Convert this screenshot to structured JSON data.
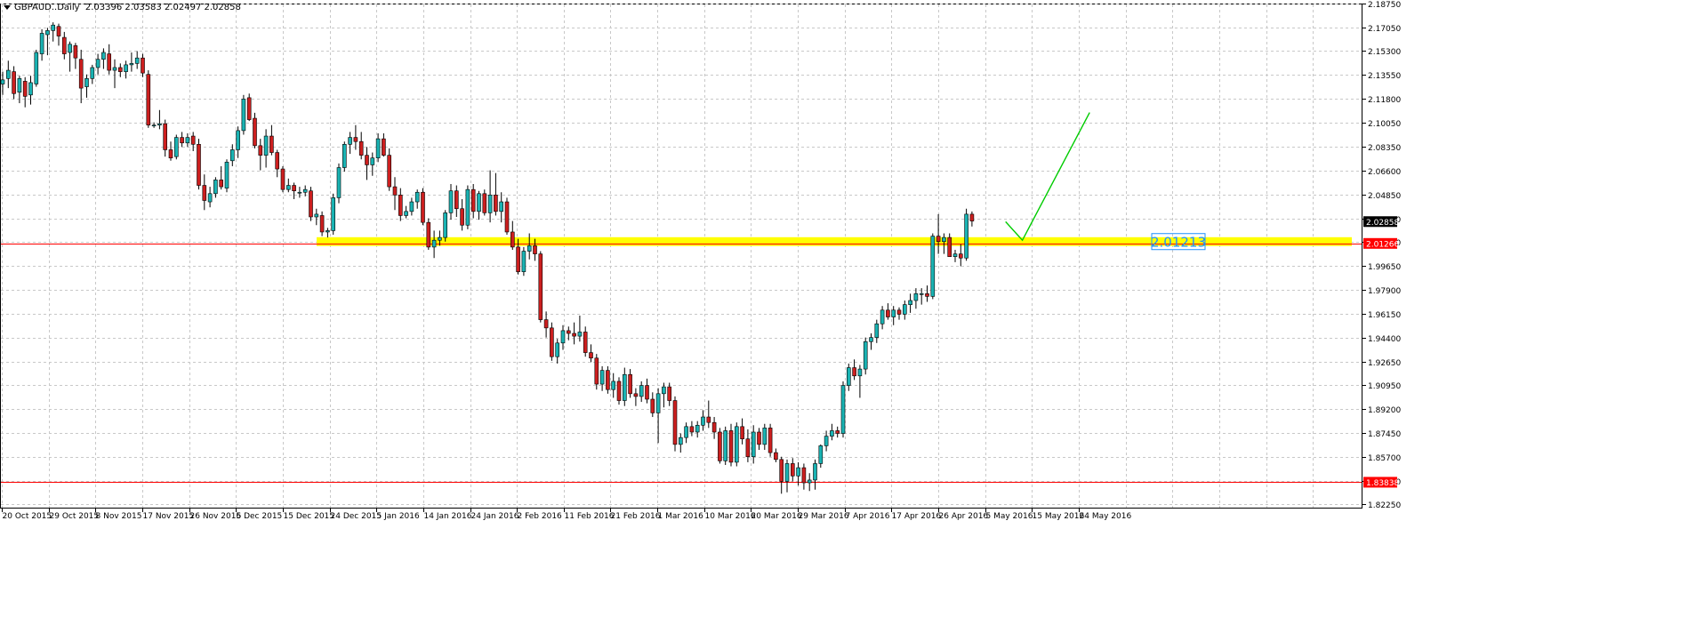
{
  "header": {
    "symbol": "GBPAUD..Daily",
    "ohlc": "2.03396 2.03583 2.02497 2.02858"
  },
  "colors": {
    "bull": "#1ab3b3",
    "bear": "#cc1f1f",
    "grid": "#c8c8c8",
    "zone": "#ffff00",
    "hline": "#ff0000",
    "projection": "#00cc00",
    "zone_label": "#1e90ff"
  },
  "chart_data": {
    "type": "candlestick",
    "symbol": "GBPAUD",
    "timeframe": "Daily",
    "ylim": [
      1.8192,
      2.1877
    ],
    "y_ticks": [
      "2.18750",
      "2.17050",
      "2.15300",
      "2.13550",
      "2.11800",
      "2.10050",
      "2.08350",
      "2.06600",
      "2.04850",
      "2.03100",
      "2.01400",
      "1.99650",
      "1.97900",
      "1.96150",
      "1.94400",
      "1.92650",
      "1.90950",
      "1.89200",
      "1.87450",
      "1.85700",
      "1.83950",
      "1.82250"
    ],
    "x_labels": [
      "20 Oct 2015",
      "29 Oct 2015",
      "8 Nov 2015",
      "17 Nov 2015",
      "26 Nov 2015",
      "6 Dec 2015",
      "15 Dec 2015",
      "24 Dec 2015",
      "5 Jan 2016",
      "14 Jan 2016",
      "24 Jan 2016",
      "2 Feb 2016",
      "11 Feb 2016",
      "21 Feb 2016",
      "1 Mar 2016",
      "10 Mar 2016",
      "20 Mar 2016",
      "29 Mar 2016",
      "7 Apr 2016",
      "17 Apr 2016",
      "26 Apr 2016",
      "5 May 2016",
      "15 May 2016",
      "24 May 2016"
    ],
    "candles": [
      [
        2.129,
        2.138,
        2.121,
        2.132
      ],
      [
        2.133,
        2.146,
        2.126,
        2.139
      ],
      [
        2.138,
        2.142,
        2.118,
        2.122
      ],
      [
        2.123,
        2.135,
        2.115,
        2.133
      ],
      [
        2.131,
        2.134,
        2.112,
        2.12
      ],
      [
        2.121,
        2.135,
        2.114,
        2.13
      ],
      [
        2.129,
        2.154,
        2.127,
        2.152
      ],
      [
        2.151,
        2.169,
        2.146,
        2.166
      ],
      [
        2.165,
        2.17,
        2.15,
        2.168
      ],
      [
        2.168,
        2.174,
        2.16,
        2.172
      ],
      [
        2.171,
        2.173,
        2.157,
        2.164
      ],
      [
        2.163,
        2.167,
        2.147,
        2.151
      ],
      [
        2.152,
        2.16,
        2.138,
        2.158
      ],
      [
        2.157,
        2.159,
        2.14,
        2.148
      ],
      [
        2.147,
        2.154,
        2.115,
        2.126
      ],
      [
        2.127,
        2.136,
        2.119,
        2.133
      ],
      [
        2.133,
        2.143,
        2.129,
        2.141
      ],
      [
        2.141,
        2.151,
        2.136,
        2.147
      ],
      [
        2.147,
        2.155,
        2.14,
        2.152
      ],
      [
        2.151,
        2.158,
        2.136,
        2.139
      ],
      [
        2.139,
        2.147,
        2.126,
        2.141
      ],
      [
        2.141,
        2.144,
        2.134,
        2.138
      ],
      [
        2.138,
        2.146,
        2.133,
        2.143
      ],
      [
        2.143,
        2.152,
        2.138,
        2.144
      ],
      [
        2.144,
        2.153,
        2.14,
        2.148
      ],
      [
        2.148,
        2.151,
        2.134,
        2.137
      ],
      [
        2.136,
        2.139,
        2.097,
        2.099
      ],
      [
        2.099,
        2.101,
        2.097,
        2.099
      ],
      [
        2.099,
        2.11,
        2.096,
        2.1
      ],
      [
        2.1,
        2.103,
        2.076,
        2.081
      ],
      [
        2.081,
        2.087,
        2.073,
        2.075
      ],
      [
        2.076,
        2.092,
        2.074,
        2.09
      ],
      [
        2.09,
        2.094,
        2.083,
        2.086
      ],
      [
        2.086,
        2.093,
        2.083,
        2.09
      ],
      [
        2.091,
        2.094,
        2.08,
        2.085
      ],
      [
        2.085,
        2.089,
        2.052,
        2.055
      ],
      [
        2.055,
        2.063,
        2.037,
        2.044
      ],
      [
        2.043,
        2.054,
        2.039,
        2.049
      ],
      [
        2.049,
        2.061,
        2.046,
        2.059
      ],
      [
        2.059,
        2.069,
        2.052,
        2.054
      ],
      [
        2.053,
        2.074,
        2.05,
        2.072
      ],
      [
        2.073,
        2.085,
        2.069,
        2.081
      ],
      [
        2.081,
        2.098,
        2.075,
        2.095
      ],
      [
        2.095,
        2.121,
        2.092,
        2.118
      ],
      [
        2.119,
        2.122,
        2.102,
        2.103
      ],
      [
        2.104,
        2.108,
        2.082,
        2.084
      ],
      [
        2.084,
        2.089,
        2.066,
        2.077
      ],
      [
        2.077,
        2.096,
        2.068,
        2.091
      ],
      [
        2.091,
        2.099,
        2.077,
        2.079
      ],
      [
        2.079,
        2.081,
        2.061,
        2.067
      ],
      [
        2.067,
        2.069,
        2.05,
        2.052
      ],
      [
        2.052,
        2.06,
        2.05,
        2.055
      ],
      [
        2.055,
        2.057,
        2.045,
        2.051
      ],
      [
        2.05,
        2.054,
        2.046,
        2.05
      ],
      [
        2.05,
        2.055,
        2.047,
        2.052
      ],
      [
        2.051,
        2.054,
        2.029,
        2.032
      ],
      [
        2.032,
        2.038,
        2.026,
        2.034
      ],
      [
        2.033,
        2.036,
        2.018,
        2.021
      ],
      [
        2.021,
        2.024,
        2.017,
        2.022
      ],
      [
        2.022,
        2.049,
        2.019,
        2.046
      ],
      [
        2.046,
        2.071,
        2.042,
        2.068
      ],
      [
        2.068,
        2.087,
        2.065,
        2.085
      ],
      [
        2.085,
        2.094,
        2.078,
        2.09
      ],
      [
        2.09,
        2.099,
        2.081,
        2.087
      ],
      [
        2.087,
        2.094,
        2.074,
        2.077
      ],
      [
        2.077,
        2.083,
        2.059,
        2.07
      ],
      [
        2.07,
        2.079,
        2.062,
        2.075
      ],
      [
        2.075,
        2.093,
        2.072,
        2.089
      ],
      [
        2.089,
        2.093,
        2.076,
        2.077
      ],
      [
        2.077,
        2.082,
        2.051,
        2.054
      ],
      [
        2.054,
        2.061,
        2.037,
        2.048
      ],
      [
        2.048,
        2.053,
        2.029,
        2.033
      ],
      [
        2.033,
        2.04,
        2.031,
        2.036
      ],
      [
        2.036,
        2.046,
        2.033,
        2.043
      ],
      [
        2.043,
        2.052,
        2.038,
        2.05
      ],
      [
        2.05,
        2.053,
        2.026,
        2.028
      ],
      [
        2.028,
        2.031,
        2.008,
        2.01
      ],
      [
        2.01,
        2.022,
        2.002,
        2.015
      ],
      [
        2.015,
        2.022,
        2.011,
        2.017
      ],
      [
        2.017,
        2.037,
        2.014,
        2.035
      ],
      [
        2.035,
        2.056,
        2.03,
        2.051
      ],
      [
        2.051,
        2.055,
        2.032,
        2.038
      ],
      [
        2.038,
        2.045,
        2.022,
        2.026
      ],
      [
        2.026,
        2.055,
        2.023,
        2.052
      ],
      [
        2.052,
        2.056,
        2.031,
        2.036
      ],
      [
        2.036,
        2.051,
        2.03,
        2.049
      ],
      [
        2.049,
        2.052,
        2.033,
        2.035
      ],
      [
        2.035,
        2.066,
        2.028,
        2.048
      ],
      [
        2.048,
        2.064,
        2.033,
        2.036
      ],
      [
        2.036,
        2.05,
        2.028,
        2.043
      ],
      [
        2.043,
        2.046,
        2.019,
        2.021
      ],
      [
        2.021,
        2.029,
        2.008,
        2.01
      ],
      [
        2.01,
        2.016,
        1.99,
        1.992
      ],
      [
        1.992,
        2.01,
        1.989,
        2.007
      ],
      [
        2.007,
        2.02,
        2.001,
        2.011
      ],
      [
        2.011,
        2.016,
        2.0,
        2.005
      ],
      [
        2.005,
        2.007,
        1.955,
        1.957
      ],
      [
        1.957,
        1.963,
        1.944,
        1.951
      ],
      [
        1.951,
        1.955,
        1.927,
        1.93
      ],
      [
        1.93,
        1.943,
        1.925,
        1.94
      ],
      [
        1.94,
        1.953,
        1.935,
        1.949
      ],
      [
        1.949,
        1.952,
        1.942,
        1.947
      ],
      [
        1.947,
        1.955,
        1.939,
        1.945
      ],
      [
        1.945,
        1.96,
        1.941,
        1.948
      ],
      [
        1.948,
        1.952,
        1.93,
        1.933
      ],
      [
        1.933,
        1.939,
        1.926,
        1.929
      ],
      [
        1.929,
        1.932,
        1.906,
        1.91
      ],
      [
        1.91,
        1.923,
        1.905,
        1.92
      ],
      [
        1.92,
        1.923,
        1.903,
        1.906
      ],
      [
        1.906,
        1.918,
        1.9,
        1.912
      ],
      [
        1.912,
        1.915,
        1.895,
        1.898
      ],
      [
        1.898,
        1.922,
        1.894,
        1.917
      ],
      [
        1.917,
        1.921,
        1.9,
        1.903
      ],
      [
        1.903,
        1.907,
        1.894,
        1.901
      ],
      [
        1.901,
        1.912,
        1.897,
        1.909
      ],
      [
        1.909,
        1.914,
        1.896,
        1.899
      ],
      [
        1.899,
        1.904,
        1.886,
        1.889
      ],
      [
        1.889,
        1.907,
        1.867,
        1.903
      ],
      [
        1.903,
        1.911,
        1.893,
        1.908
      ],
      [
        1.908,
        1.911,
        1.894,
        1.898
      ],
      [
        1.898,
        1.901,
        1.861,
        1.866
      ],
      [
        1.866,
        1.874,
        1.86,
        1.871
      ],
      [
        1.871,
        1.882,
        1.867,
        1.879
      ],
      [
        1.879,
        1.883,
        1.872,
        1.875
      ],
      [
        1.875,
        1.883,
        1.871,
        1.88
      ],
      [
        1.88,
        1.891,
        1.876,
        1.886
      ],
      [
        1.886,
        1.898,
        1.878,
        1.882
      ],
      [
        1.882,
        1.886,
        1.87,
        1.875
      ],
      [
        1.875,
        1.878,
        1.852,
        1.854
      ],
      [
        1.854,
        1.879,
        1.851,
        1.876
      ],
      [
        1.876,
        1.881,
        1.85,
        1.853
      ],
      [
        1.853,
        1.882,
        1.85,
        1.879
      ],
      [
        1.879,
        1.885,
        1.866,
        1.87
      ],
      [
        1.87,
        1.877,
        1.853,
        1.857
      ],
      [
        1.857,
        1.88,
        1.852,
        1.875
      ],
      [
        1.875,
        1.878,
        1.862,
        1.866
      ],
      [
        1.866,
        1.881,
        1.862,
        1.878
      ],
      [
        1.878,
        1.881,
        1.857,
        1.86
      ],
      [
        1.86,
        1.863,
        1.853,
        1.855
      ],
      [
        1.855,
        1.857,
        1.83,
        1.839
      ],
      [
        1.839,
        1.855,
        1.831,
        1.852
      ],
      [
        1.852,
        1.856,
        1.839,
        1.843
      ],
      [
        1.843,
        1.853,
        1.836,
        1.849
      ],
      [
        1.849,
        1.852,
        1.833,
        1.838
      ],
      [
        1.838,
        1.845,
        1.832,
        1.84
      ],
      [
        1.84,
        1.855,
        1.833,
        1.852
      ],
      [
        1.852,
        1.866,
        1.849,
        1.865
      ],
      [
        1.865,
        1.876,
        1.861,
        1.872
      ],
      [
        1.872,
        1.881,
        1.869,
        1.876
      ],
      [
        1.876,
        1.879,
        1.871,
        1.874
      ],
      [
        1.874,
        1.912,
        1.871,
        1.909
      ],
      [
        1.909,
        1.925,
        1.905,
        1.922
      ],
      [
        1.922,
        1.928,
        1.913,
        1.916
      ],
      [
        1.916,
        1.924,
        1.9,
        1.921
      ],
      [
        1.921,
        1.944,
        1.917,
        1.941
      ],
      [
        1.941,
        1.947,
        1.935,
        1.944
      ],
      [
        1.944,
        1.957,
        1.94,
        1.954
      ],
      [
        1.954,
        1.967,
        1.95,
        1.964
      ],
      [
        1.964,
        1.969,
        1.957,
        1.959
      ],
      [
        1.959,
        1.967,
        1.953,
        1.964
      ],
      [
        1.964,
        1.966,
        1.957,
        1.961
      ],
      [
        1.961,
        1.971,
        1.957,
        1.968
      ],
      [
        1.968,
        1.976,
        1.962,
        1.971
      ],
      [
        1.971,
        1.98,
        1.965,
        1.976
      ],
      [
        1.976,
        1.98,
        1.968,
        1.976
      ],
      [
        1.976,
        1.982,
        1.97,
        1.974
      ],
      [
        1.974,
        2.02,
        1.972,
        2.018
      ],
      [
        2.018,
        2.034,
        2.005,
        2.014
      ],
      [
        2.014,
        2.02,
        2.005,
        2.017
      ],
      [
        2.017,
        2.02,
        2.003,
        2.003
      ],
      [
        2.003,
        2.008,
        1.999,
        2.005
      ],
      [
        2.005,
        2.012,
        1.996,
        2.002
      ],
      [
        2.002,
        2.038,
        2.0,
        2.034
      ],
      [
        2.034,
        2.036,
        2.025,
        2.029
      ]
    ],
    "zone": {
      "from": 2.0108,
      "to": 2.0172,
      "label": "2.01213"
    },
    "horizontal_lines": [
      {
        "price": 2.01266,
        "label": "2.01266"
      },
      {
        "price": 1.83838,
        "label": "1.83838"
      }
    ],
    "current_price": {
      "price": 2.02858,
      "label": "2.02858"
    },
    "projection": [
      {
        "bar": 179,
        "price": 2.0285
      },
      {
        "bar": 182,
        "price": 2.015
      },
      {
        "bar": 194,
        "price": 2.1082
      }
    ]
  }
}
